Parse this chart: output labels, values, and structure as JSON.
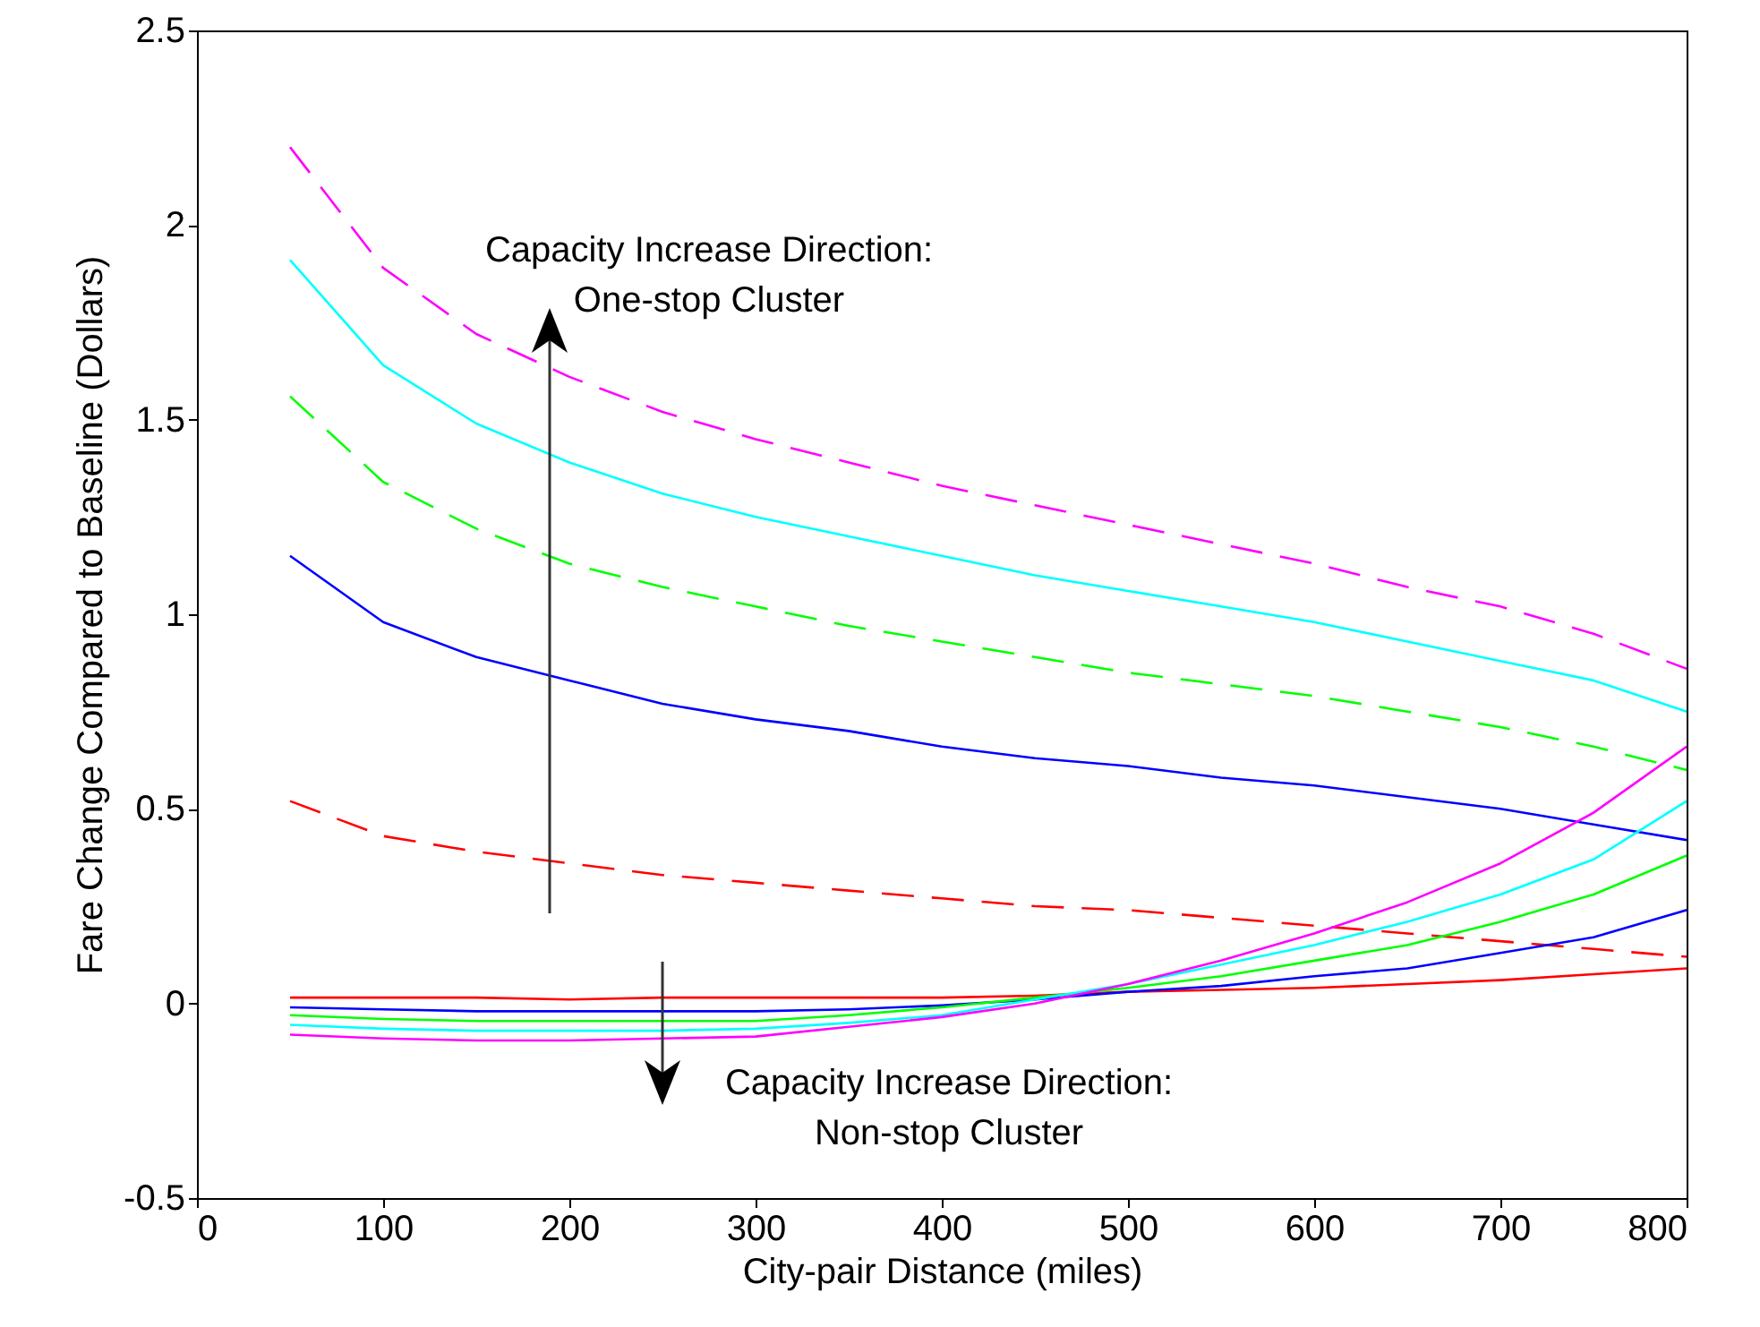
{
  "chart_data": {
    "type": "line",
    "xlabel": "City-pair Distance (miles)",
    "ylabel": "Fare Change Compared to Baseline (Dollars)",
    "x": [
      50,
      100,
      150,
      200,
      250,
      300,
      350,
      400,
      450,
      500,
      550,
      600,
      650,
      700,
      750,
      800
    ],
    "xlim": [
      0,
      800
    ],
    "xticks": [
      0,
      100,
      200,
      300,
      400,
      500,
      600,
      700,
      800
    ],
    "ylim": [
      -0.5,
      2.5
    ],
    "yticks": [
      -0.5,
      0,
      0.5,
      1,
      1.5,
      2,
      2.5
    ],
    "grid": false,
    "marker": "none",
    "annotations": [
      "Capacity Increase Direction:\nOne-stop Cluster",
      "Capacity Increase Direction:\nNon-stop Cluster"
    ],
    "series": [
      {
        "color": "#ff00ff",
        "line_style": "dashed",
        "values": [
          2.2,
          1.89,
          1.72,
          1.61,
          1.52,
          1.45,
          1.39,
          1.33,
          1.28,
          1.23,
          1.18,
          1.13,
          1.07,
          1.02,
          0.95,
          0.86
        ]
      },
      {
        "color": "#00ffff",
        "line_style": "solid",
        "values": [
          1.91,
          1.64,
          1.49,
          1.39,
          1.31,
          1.25,
          1.2,
          1.15,
          1.1,
          1.06,
          1.02,
          0.98,
          0.93,
          0.88,
          0.83,
          0.75
        ]
      },
      {
        "color": "#00ff00",
        "line_style": "dashed",
        "values": [
          1.56,
          1.34,
          1.22,
          1.13,
          1.07,
          1.02,
          0.97,
          0.93,
          0.89,
          0.85,
          0.82,
          0.79,
          0.75,
          0.71,
          0.66,
          0.6
        ]
      },
      {
        "color": "#0000ff",
        "line_style": "solid",
        "values": [
          1.15,
          0.98,
          0.89,
          0.83,
          0.77,
          0.73,
          0.7,
          0.66,
          0.63,
          0.61,
          0.58,
          0.56,
          0.53,
          0.5,
          0.46,
          0.42
        ]
      },
      {
        "color": "#ff0000",
        "line_style": "dashed",
        "values": [
          0.52,
          0.43,
          0.39,
          0.36,
          0.33,
          0.31,
          0.29,
          0.27,
          0.25,
          0.24,
          0.22,
          0.2,
          0.18,
          0.16,
          0.14,
          0.12
        ]
      },
      {
        "color": "#ff0000",
        "line_style": "solid",
        "values": [
          0.015,
          0.015,
          0.015,
          0.01,
          0.015,
          0.015,
          0.015,
          0.015,
          0.02,
          0.03,
          0.035,
          0.04,
          0.05,
          0.06,
          0.075,
          0.09
        ]
      },
      {
        "color": "#0000ff",
        "line_style": "solid",
        "values": [
          -0.01,
          -0.015,
          -0.02,
          -0.02,
          -0.02,
          -0.02,
          -0.015,
          -0.005,
          0.01,
          0.03,
          0.045,
          0.07,
          0.09,
          0.13,
          0.17,
          0.24
        ]
      },
      {
        "color": "#00ff00",
        "line_style": "solid",
        "values": [
          -0.03,
          -0.04,
          -0.045,
          -0.045,
          -0.045,
          -0.045,
          -0.03,
          -0.01,
          0.015,
          0.04,
          0.07,
          0.11,
          0.15,
          0.21,
          0.28,
          0.38
        ]
      },
      {
        "color": "#00ffff",
        "line_style": "solid",
        "values": [
          -0.055,
          -0.065,
          -0.07,
          -0.07,
          -0.07,
          -0.065,
          -0.05,
          -0.03,
          0.01,
          0.05,
          0.1,
          0.15,
          0.21,
          0.28,
          0.37,
          0.52
        ]
      },
      {
        "color": "#ff00ff",
        "line_style": "solid",
        "values": [
          -0.08,
          -0.09,
          -0.095,
          -0.095,
          -0.09,
          -0.085,
          -0.06,
          -0.035,
          0.0,
          0.05,
          0.11,
          0.18,
          0.26,
          0.36,
          0.49,
          0.66
        ]
      }
    ]
  }
}
